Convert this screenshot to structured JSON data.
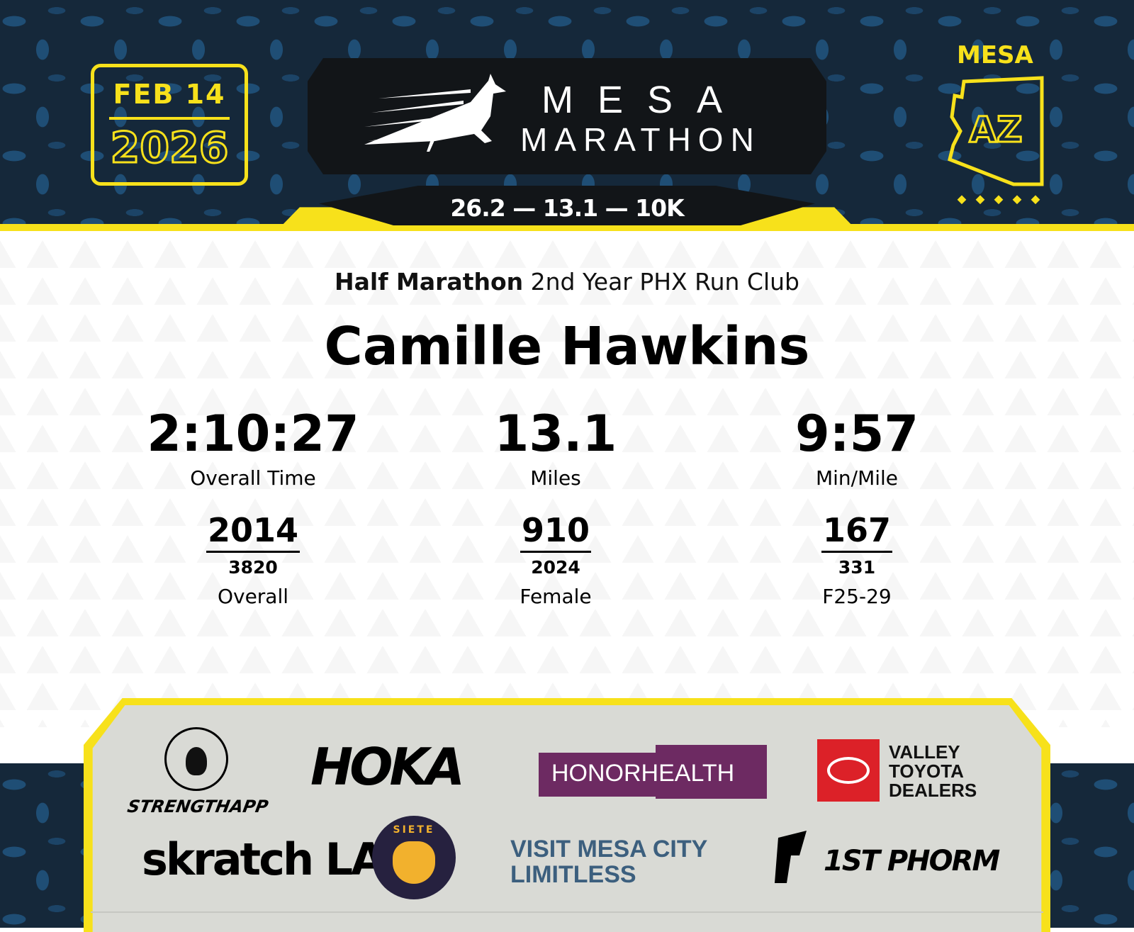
{
  "header": {
    "date_line1": "FEB 14",
    "date_line2": "2026",
    "logo_line1": "MESA",
    "logo_line2": "MARATHON",
    "distances": "26.2 — 13.1 — 10K",
    "state_city": "MESA",
    "state_abbr": "AZ"
  },
  "result": {
    "race": "Half Marathon",
    "team": "2nd Year PHX Run Club",
    "name": "Camille Hawkins",
    "stats": [
      {
        "value": "2:10:27",
        "label": "Overall Time"
      },
      {
        "value": "13.1",
        "label": "Miles"
      },
      {
        "value": "9:57",
        "label": "Min/Mile"
      }
    ],
    "ranks": [
      {
        "place": "2014",
        "total": "3820",
        "label": "Overall"
      },
      {
        "place": "910",
        "total": "2024",
        "label": "Female"
      },
      {
        "place": "167",
        "total": "331",
        "label": "F25-29"
      }
    ]
  },
  "sponsors": [
    "STRENGTHAPP",
    "HOKA",
    "HONORHEALTH",
    "VALLEY TOYOTA DEALERS",
    "skratch LABS",
    "SIETE",
    "VISIT MESA CITY LIMITLESS",
    "1ST PHORM"
  ],
  "colors": {
    "yellow": "#f7e11b",
    "navy": "#15283a",
    "honorhealth": "#6d2a62",
    "toyota": "#dc2128"
  }
}
